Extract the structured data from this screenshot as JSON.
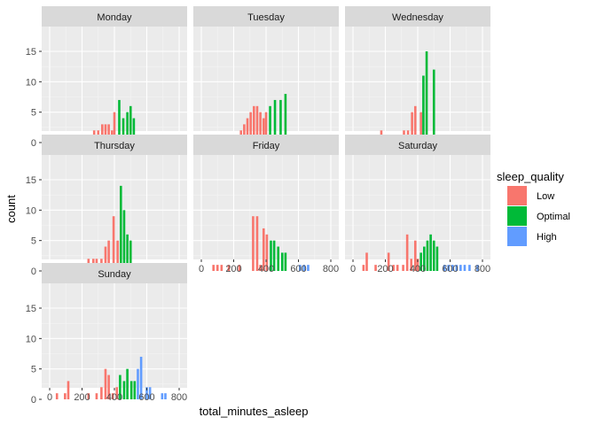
{
  "chart_data": {
    "type": "bar",
    "subtype": "histogram-faceted",
    "xlabel": "total_minutes_asleep",
    "ylabel": "count",
    "xlim": [
      0,
      800
    ],
    "ylim": [
      0,
      15
    ],
    "x_ticks": [
      0,
      200,
      400,
      600,
      800
    ],
    "y_ticks": [
      0,
      5,
      10,
      15
    ],
    "bin_width": 14,
    "grid": true,
    "legend": {
      "title": "sleep_quality",
      "position": "right",
      "entries": [
        {
          "label": "Low",
          "color": "#F8766D"
        },
        {
          "label": "Optimal",
          "color": "#00BA38"
        },
        {
          "label": "High",
          "color": "#619CFF"
        }
      ]
    },
    "panels": [
      {
        "name": "Monday",
        "bars": [
          {
            "x": 40,
            "y": 1,
            "q": "Low"
          },
          {
            "x": 70,
            "y": 1,
            "q": "Low"
          },
          {
            "x": 190,
            "y": 1,
            "q": "Low"
          },
          {
            "x": 210,
            "y": 1,
            "q": "Low"
          },
          {
            "x": 230,
            "y": 1,
            "q": "Low"
          },
          {
            "x": 275,
            "y": 2,
            "q": "Low"
          },
          {
            "x": 300,
            "y": 2,
            "q": "Low"
          },
          {
            "x": 325,
            "y": 3,
            "q": "Low"
          },
          {
            "x": 345,
            "y": 3,
            "q": "Low"
          },
          {
            "x": 365,
            "y": 3,
            "q": "Low"
          },
          {
            "x": 385,
            "y": 2,
            "q": "Low"
          },
          {
            "x": 400,
            "y": 5,
            "q": "Low"
          },
          {
            "x": 430,
            "y": 7,
            "q": "Optimal"
          },
          {
            "x": 455,
            "y": 4,
            "q": "Optimal"
          },
          {
            "x": 480,
            "y": 5,
            "q": "Optimal"
          },
          {
            "x": 500,
            "y": 6,
            "q": "Optimal"
          },
          {
            "x": 520,
            "y": 4,
            "q": "Optimal"
          },
          {
            "x": 795,
            "y": 1,
            "q": "High"
          }
        ]
      },
      {
        "name": "Tuesday",
        "bars": [
          {
            "x": 95,
            "y": 1,
            "q": "Low"
          },
          {
            "x": 225,
            "y": 1,
            "q": "Low"
          },
          {
            "x": 245,
            "y": 2,
            "q": "Low"
          },
          {
            "x": 265,
            "y": 3,
            "q": "Low"
          },
          {
            "x": 285,
            "y": 4,
            "q": "Low"
          },
          {
            "x": 305,
            "y": 5,
            "q": "Low"
          },
          {
            "x": 325,
            "y": 6,
            "q": "Low"
          },
          {
            "x": 345,
            "y": 6,
            "q": "Low"
          },
          {
            "x": 365,
            "y": 5,
            "q": "Low"
          },
          {
            "x": 385,
            "y": 4,
            "q": "Low"
          },
          {
            "x": 400,
            "y": 5,
            "q": "Low"
          },
          {
            "x": 425,
            "y": 6,
            "q": "Optimal"
          },
          {
            "x": 455,
            "y": 7,
            "q": "Optimal"
          },
          {
            "x": 490,
            "y": 7,
            "q": "Optimal"
          },
          {
            "x": 520,
            "y": 8,
            "q": "Optimal"
          },
          {
            "x": 585,
            "y": 1,
            "q": "High"
          },
          {
            "x": 750,
            "y": 1,
            "q": "High"
          }
        ]
      },
      {
        "name": "Wednesday",
        "bars": [
          {
            "x": 75,
            "y": 1,
            "q": "Low"
          },
          {
            "x": 115,
            "y": 1,
            "q": "Low"
          },
          {
            "x": 135,
            "y": 1,
            "q": "Low"
          },
          {
            "x": 175,
            "y": 2,
            "q": "Low"
          },
          {
            "x": 230,
            "y": 1,
            "q": "Low"
          },
          {
            "x": 260,
            "y": 1,
            "q": "Low"
          },
          {
            "x": 295,
            "y": 1,
            "q": "Low"
          },
          {
            "x": 315,
            "y": 2,
            "q": "Low"
          },
          {
            "x": 340,
            "y": 2,
            "q": "Low"
          },
          {
            "x": 365,
            "y": 5,
            "q": "Low"
          },
          {
            "x": 385,
            "y": 6,
            "q": "Low"
          },
          {
            "x": 400,
            "y": 1,
            "q": "Low"
          },
          {
            "x": 420,
            "y": 5,
            "q": "Low"
          },
          {
            "x": 435,
            "y": 11,
            "q": "Optimal"
          },
          {
            "x": 455,
            "y": 15,
            "q": "Optimal"
          },
          {
            "x": 480,
            "y": 1,
            "q": "Optimal"
          },
          {
            "x": 500,
            "y": 12,
            "q": "Optimal"
          },
          {
            "x": 520,
            "y": 1,
            "q": "Optimal"
          },
          {
            "x": 540,
            "y": 1,
            "q": "Optimal"
          },
          {
            "x": 600,
            "y": 1,
            "q": "High"
          },
          {
            "x": 625,
            "y": 1,
            "q": "High"
          },
          {
            "x": 650,
            "y": 1,
            "q": "High"
          }
        ]
      },
      {
        "name": "Thursday",
        "bars": [
          {
            "x": 40,
            "y": 1,
            "q": "Low"
          },
          {
            "x": 65,
            "y": 1,
            "q": "Low"
          },
          {
            "x": 110,
            "y": 1,
            "q": "Low"
          },
          {
            "x": 160,
            "y": 1,
            "q": "Low"
          },
          {
            "x": 210,
            "y": 1,
            "q": "Low"
          },
          {
            "x": 240,
            "y": 2,
            "q": "Low"
          },
          {
            "x": 270,
            "y": 2,
            "q": "Low"
          },
          {
            "x": 290,
            "y": 2,
            "q": "Low"
          },
          {
            "x": 320,
            "y": 2,
            "q": "Low"
          },
          {
            "x": 345,
            "y": 4,
            "q": "Low"
          },
          {
            "x": 365,
            "y": 5,
            "q": "Low"
          },
          {
            "x": 395,
            "y": 9,
            "q": "Low"
          },
          {
            "x": 420,
            "y": 5,
            "q": "Low"
          },
          {
            "x": 440,
            "y": 14,
            "q": "Optimal"
          },
          {
            "x": 460,
            "y": 10,
            "q": "Optimal"
          },
          {
            "x": 480,
            "y": 6,
            "q": "Optimal"
          },
          {
            "x": 500,
            "y": 5,
            "q": "Optimal"
          },
          {
            "x": 525,
            "y": 1,
            "q": "Optimal"
          }
        ]
      },
      {
        "name": "Friday",
        "bars": [
          {
            "x": 75,
            "y": 1,
            "q": "Low"
          },
          {
            "x": 100,
            "y": 1,
            "q": "Low"
          },
          {
            "x": 125,
            "y": 1,
            "q": "Low"
          },
          {
            "x": 170,
            "y": 1,
            "q": "Low"
          },
          {
            "x": 235,
            "y": 1,
            "q": "Low"
          },
          {
            "x": 320,
            "y": 9,
            "q": "Low"
          },
          {
            "x": 345,
            "y": 9,
            "q": "Low"
          },
          {
            "x": 365,
            "y": 1,
            "q": "Low"
          },
          {
            "x": 385,
            "y": 7,
            "q": "Low"
          },
          {
            "x": 405,
            "y": 6,
            "q": "Low"
          },
          {
            "x": 430,
            "y": 5,
            "q": "Optimal"
          },
          {
            "x": 450,
            "y": 5,
            "q": "Optimal"
          },
          {
            "x": 475,
            "y": 4,
            "q": "Optimal"
          },
          {
            "x": 500,
            "y": 3,
            "q": "Optimal"
          },
          {
            "x": 520,
            "y": 3,
            "q": "Optimal"
          },
          {
            "x": 610,
            "y": 1,
            "q": "High"
          },
          {
            "x": 635,
            "y": 1,
            "q": "High"
          },
          {
            "x": 660,
            "y": 1,
            "q": "High"
          }
        ]
      },
      {
        "name": "Saturday",
        "bars": [
          {
            "x": 65,
            "y": 1,
            "q": "Low"
          },
          {
            "x": 85,
            "y": 3,
            "q": "Low"
          },
          {
            "x": 140,
            "y": 1,
            "q": "Low"
          },
          {
            "x": 220,
            "y": 3,
            "q": "Low"
          },
          {
            "x": 250,
            "y": 1,
            "q": "Low"
          },
          {
            "x": 275,
            "y": 1,
            "q": "Low"
          },
          {
            "x": 310,
            "y": 1,
            "q": "Low"
          },
          {
            "x": 335,
            "y": 6,
            "q": "Low"
          },
          {
            "x": 360,
            "y": 2,
            "q": "Low"
          },
          {
            "x": 385,
            "y": 5,
            "q": "Low"
          },
          {
            "x": 400,
            "y": 2,
            "q": "Low"
          },
          {
            "x": 420,
            "y": 3,
            "q": "Optimal"
          },
          {
            "x": 440,
            "y": 4,
            "q": "Optimal"
          },
          {
            "x": 460,
            "y": 5,
            "q": "Optimal"
          },
          {
            "x": 480,
            "y": 6,
            "q": "Optimal"
          },
          {
            "x": 500,
            "y": 5,
            "q": "Optimal"
          },
          {
            "x": 520,
            "y": 4,
            "q": "Optimal"
          },
          {
            "x": 565,
            "y": 1,
            "q": "High"
          },
          {
            "x": 590,
            "y": 1,
            "q": "High"
          },
          {
            "x": 615,
            "y": 1,
            "q": "High"
          },
          {
            "x": 640,
            "y": 1,
            "q": "High"
          },
          {
            "x": 665,
            "y": 1,
            "q": "High"
          },
          {
            "x": 690,
            "y": 1,
            "q": "High"
          },
          {
            "x": 720,
            "y": 1,
            "q": "High"
          },
          {
            "x": 770,
            "y": 1,
            "q": "High"
          }
        ]
      },
      {
        "name": "Sunday",
        "bars": [
          {
            "x": 45,
            "y": 1,
            "q": "Low"
          },
          {
            "x": 95,
            "y": 1,
            "q": "Low"
          },
          {
            "x": 115,
            "y": 3,
            "q": "Low"
          },
          {
            "x": 240,
            "y": 1,
            "q": "Low"
          },
          {
            "x": 290,
            "y": 1,
            "q": "Low"
          },
          {
            "x": 320,
            "y": 2,
            "q": "Low"
          },
          {
            "x": 345,
            "y": 5,
            "q": "Low"
          },
          {
            "x": 365,
            "y": 4,
            "q": "Low"
          },
          {
            "x": 390,
            "y": 1,
            "q": "Low"
          },
          {
            "x": 415,
            "y": 2,
            "q": "Low"
          },
          {
            "x": 435,
            "y": 4,
            "q": "Optimal"
          },
          {
            "x": 460,
            "y": 3,
            "q": "Optimal"
          },
          {
            "x": 480,
            "y": 5,
            "q": "Optimal"
          },
          {
            "x": 505,
            "y": 3,
            "q": "Optimal"
          },
          {
            "x": 525,
            "y": 3,
            "q": "Optimal"
          },
          {
            "x": 545,
            "y": 5,
            "q": "High"
          },
          {
            "x": 565,
            "y": 7,
            "q": "High"
          },
          {
            "x": 600,
            "y": 2,
            "q": "High"
          },
          {
            "x": 620,
            "y": 2,
            "q": "High"
          },
          {
            "x": 695,
            "y": 1,
            "q": "High"
          },
          {
            "x": 715,
            "y": 1,
            "q": "High"
          }
        ]
      }
    ]
  }
}
